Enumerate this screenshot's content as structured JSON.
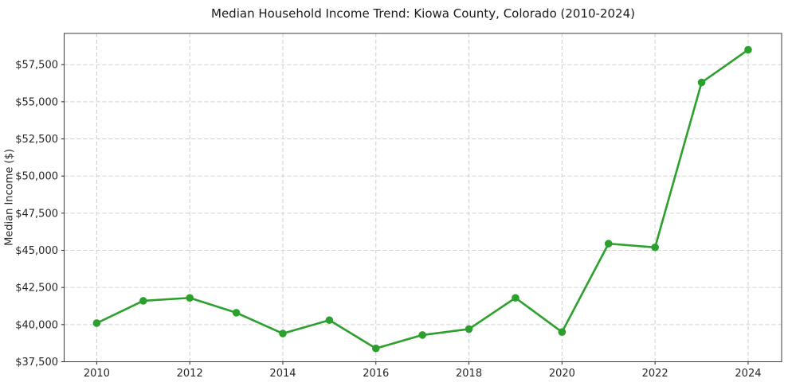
{
  "chart_data": {
    "type": "line",
    "title": "Median Household Income Trend: Kiowa County, Colorado (2010-2024)",
    "xlabel": "",
    "ylabel": "Median Income ($)",
    "x": [
      2010,
      2011,
      2012,
      2013,
      2014,
      2015,
      2016,
      2017,
      2018,
      2019,
      2020,
      2021,
      2022,
      2023,
      2024
    ],
    "values": [
      40100,
      41600,
      41800,
      40800,
      39400,
      40300,
      38400,
      39300,
      39700,
      41800,
      39500,
      45450,
      45200,
      56300,
      58500
    ],
    "line_color": "#2ca02c",
    "marker": "circle",
    "grid": true,
    "grid_style": "dashed",
    "grid_color": "#cfcfcf",
    "legend": "none",
    "xlim": [
      2009.3,
      2024.72
    ],
    "ylim": [
      37500,
      59600
    ],
    "xticks": [
      2010,
      2012,
      2014,
      2016,
      2018,
      2020,
      2022,
      2024
    ],
    "xtick_labels": [
      "2010",
      "2012",
      "2014",
      "2016",
      "2018",
      "2020",
      "2022",
      "2024"
    ],
    "yticks": [
      37500,
      40000,
      42500,
      45000,
      47500,
      50000,
      52500,
      55000,
      57500
    ],
    "ytick_labels": [
      "$37,500",
      "$40,000",
      "$42,500",
      "$45,000",
      "$47,500",
      "$50,000",
      "$52,500",
      "$55,000",
      "$57,500"
    ]
  }
}
